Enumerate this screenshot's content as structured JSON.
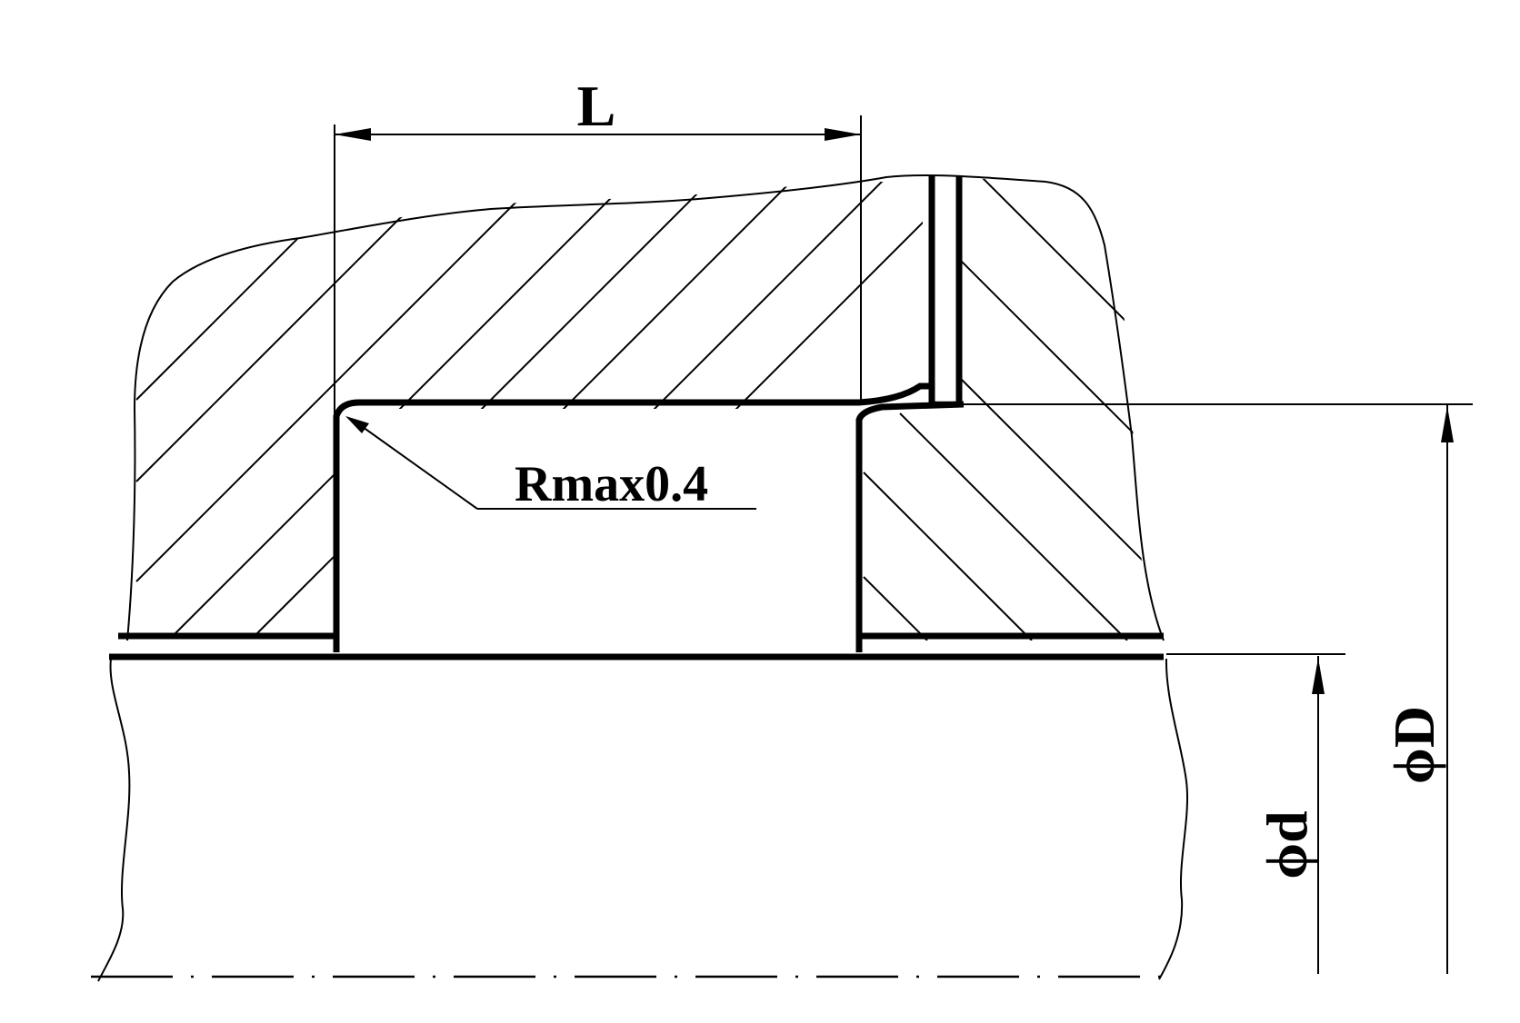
{
  "diagram": {
    "labels": {
      "length": "L",
      "roughness": "Rmax0.4",
      "bore_diameter": "ϕD",
      "shaft_diameter": "ϕd"
    },
    "colors": {
      "line": "#000000",
      "background": "#ffffff"
    }
  }
}
